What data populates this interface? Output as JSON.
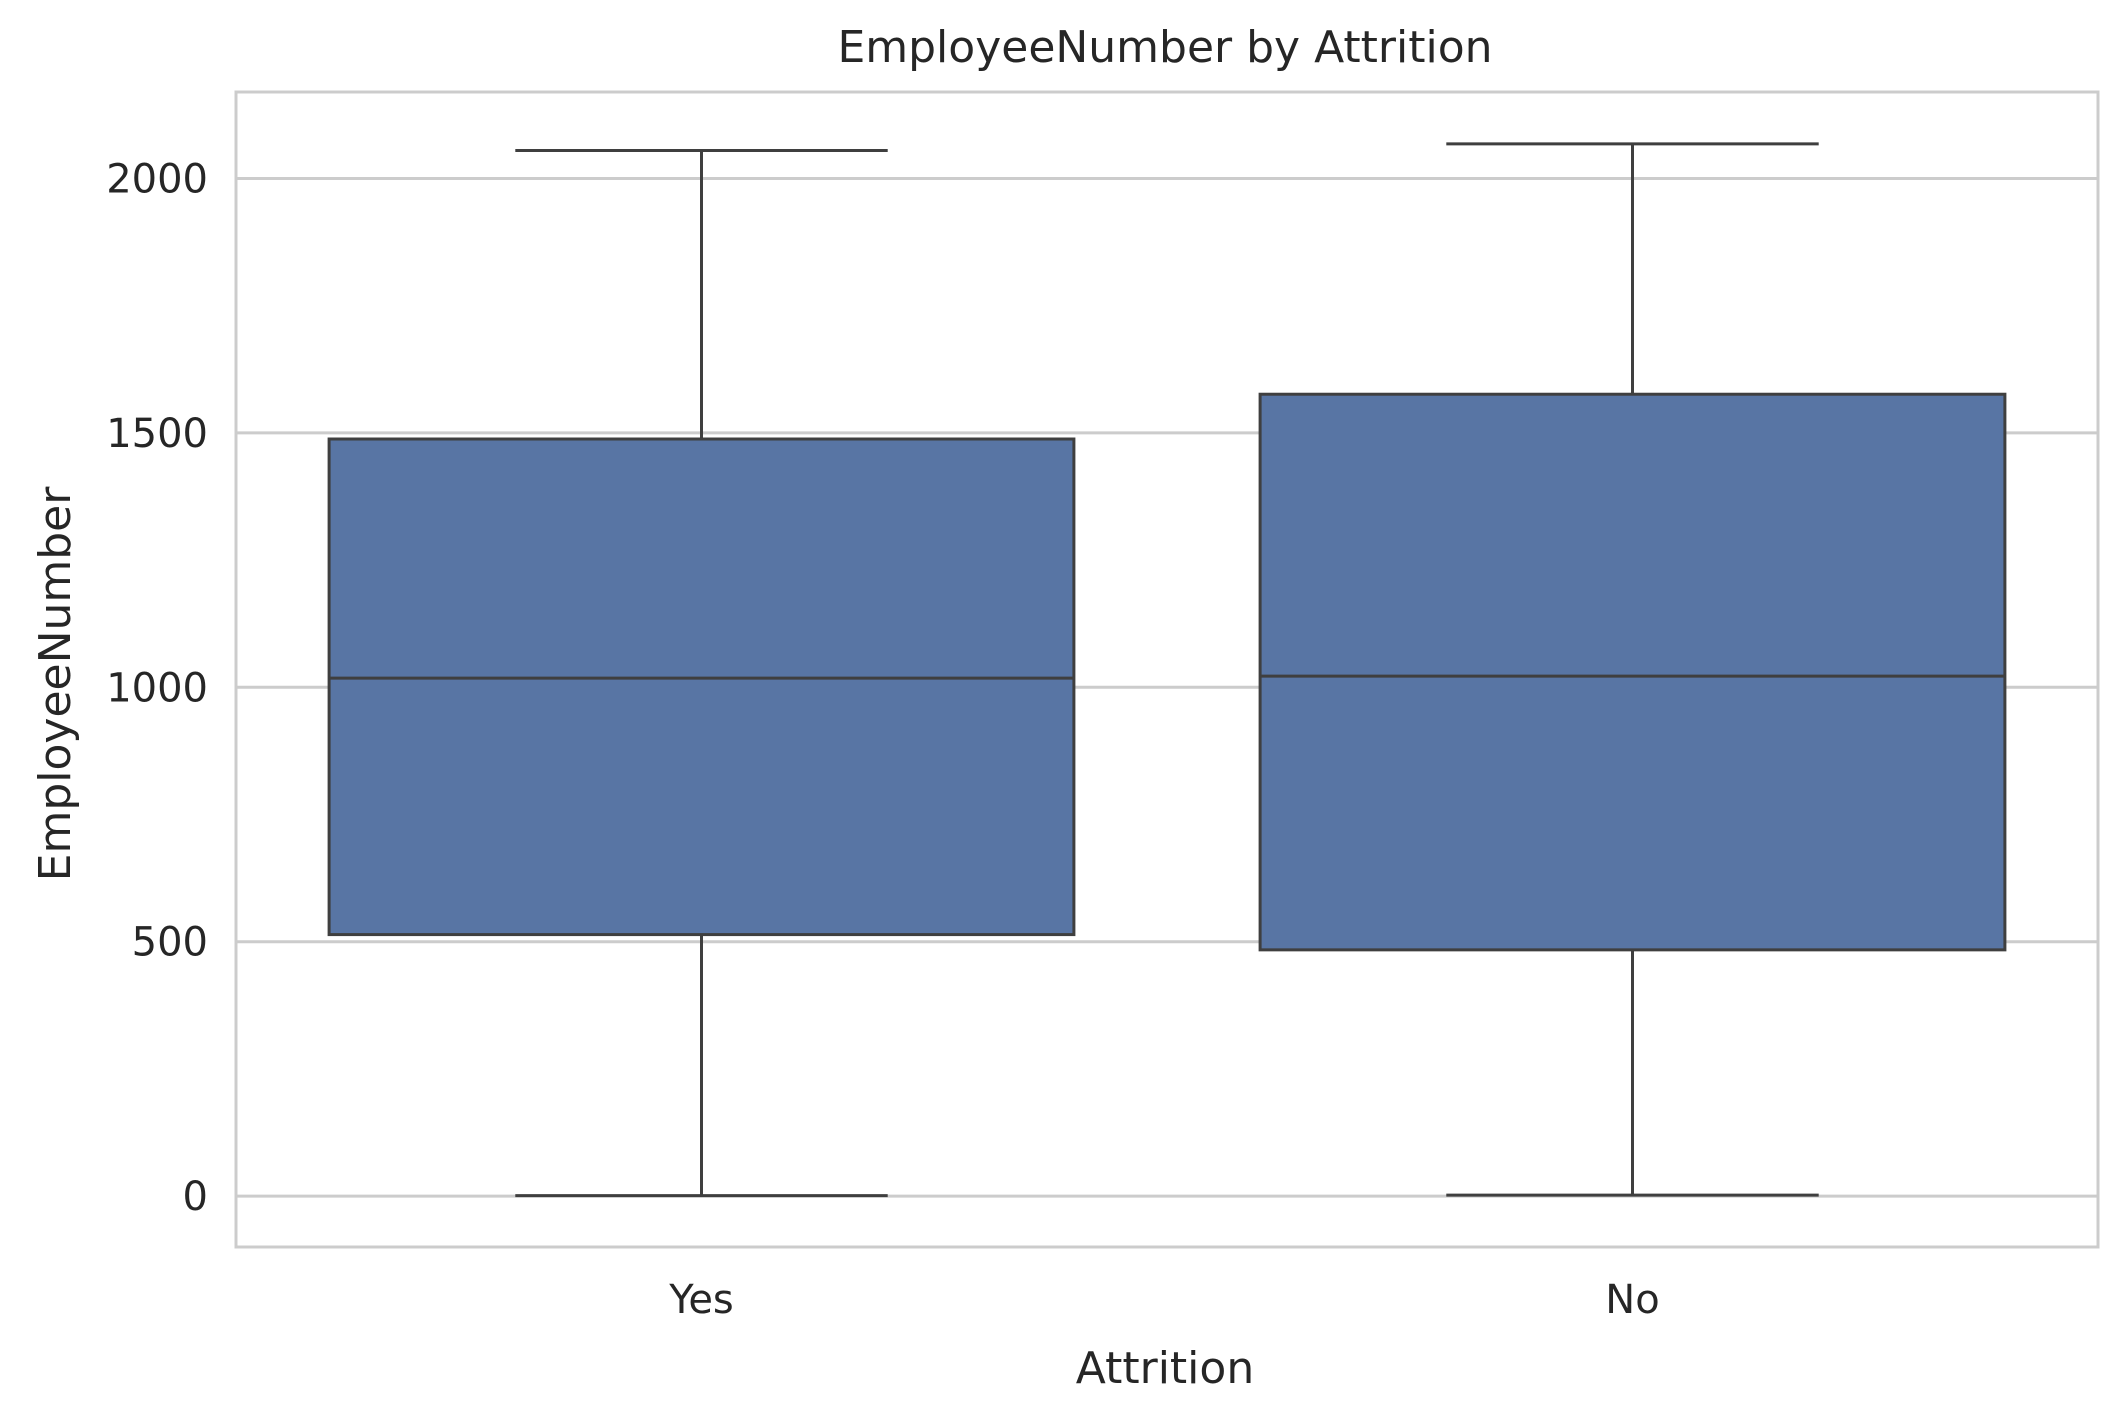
{
  "chart_data": {
    "type": "box",
    "title": "EmployeeNumber by Attrition",
    "xlabel": "Attrition",
    "ylabel": "EmployeeNumber",
    "categories": [
      "Yes",
      "No"
    ],
    "boxes": [
      {
        "category": "Yes",
        "min": 1,
        "q1": 514,
        "median": 1018,
        "q3": 1488,
        "max": 2055
      },
      {
        "category": "No",
        "min": 2,
        "q1": 484,
        "median": 1022,
        "q3": 1576,
        "max": 2068
      }
    ],
    "y_ticks": [
      0,
      500,
      1000,
      1500,
      2000
    ],
    "y_tick_labels": [
      "0",
      "500",
      "1000",
      "1500",
      "2000"
    ],
    "ylim": [
      -100,
      2170
    ],
    "grid": "horizontal",
    "colors": {
      "box_fill": "#5875a4",
      "line": "#3f3f3f",
      "grid": "#cccccc",
      "frame": "#cccccc"
    }
  }
}
